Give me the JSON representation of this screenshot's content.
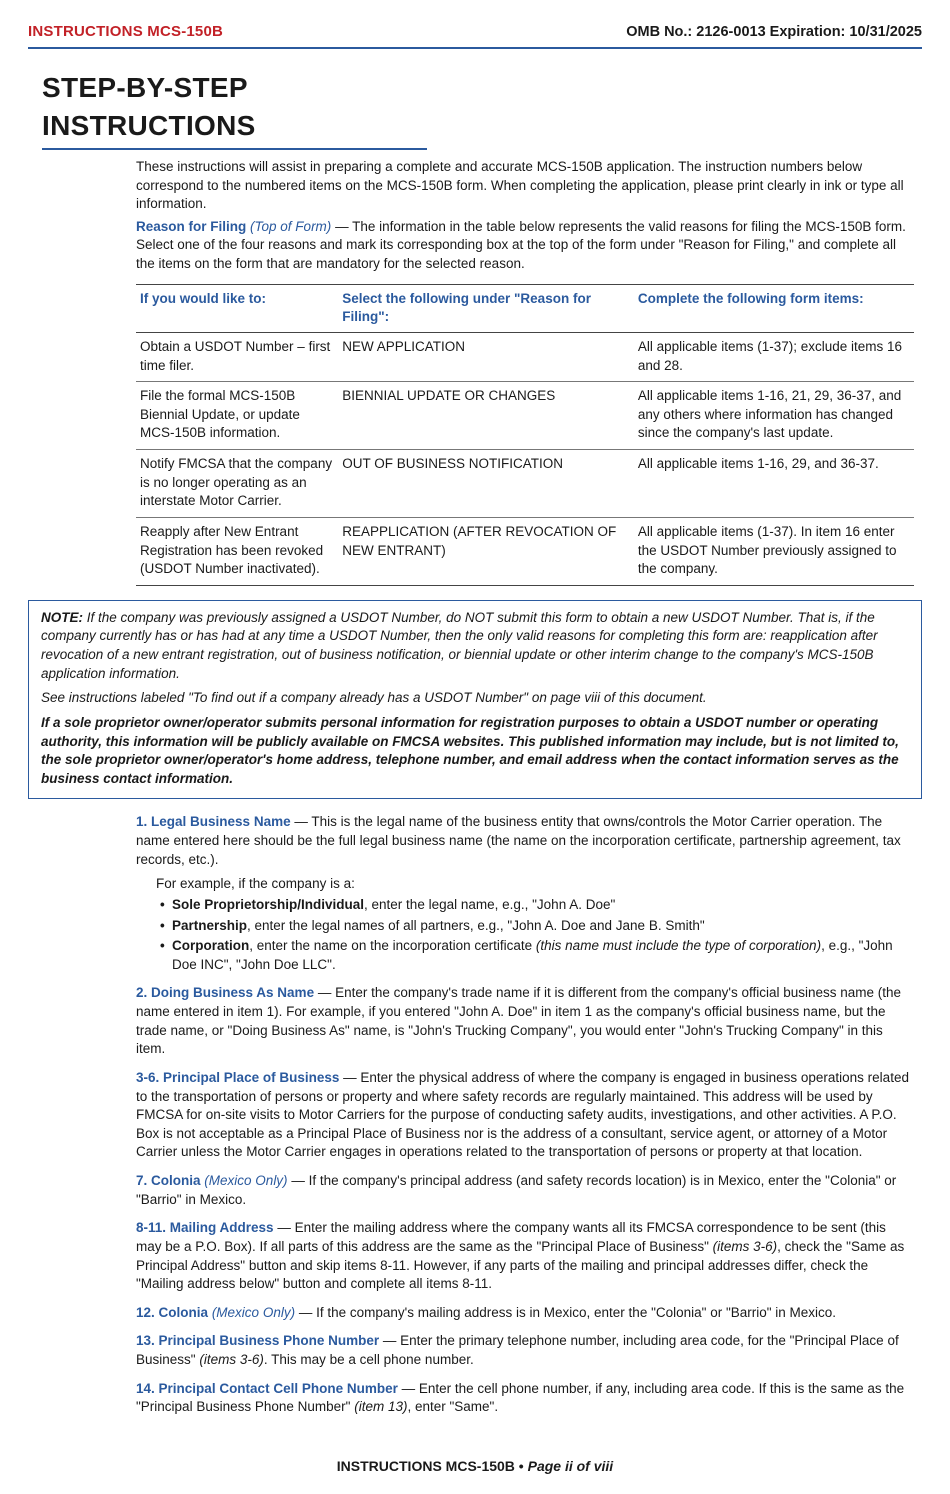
{
  "header": {
    "left": "INSTRUCTIONS MCS-150B",
    "right": "OMB No.: 2126-0013   Expiration: 10/31/2025"
  },
  "title": "STEP-BY-STEP INSTRUCTIONS",
  "intro": {
    "p1": "These instructions will assist in preparing a complete and accurate MCS-150B application. The instruction numbers below correspond to the numbered items on the MCS-150B form. When completing the application, please print clearly in ink or type all information.",
    "reason_label": "Reason for Filing",
    "reason_italic": "(Top of Form)",
    "dash": " — ",
    "reason_text": "The information in the table below represents the valid reasons for filing the MCS-150B form. Select one of the four reasons and mark its corresponding box at the top of the form under \"Reason for Filing,\" and complete all the items on the form that are mandatory for the selected reason."
  },
  "table": {
    "headers": {
      "c1": "If you would like to:",
      "c2": "Select the following under \"Reason for Filing\":",
      "c3": "Complete the following form items:"
    },
    "rows": [
      {
        "c1": "Obtain a USDOT Number – first time filer.",
        "c2": "NEW APPLICATION",
        "c3": "All applicable items (1-37); exclude items 16 and 28."
      },
      {
        "c1": "File the formal MCS-150B Biennial Update, or update MCS-150B information.",
        "c2": "BIENNIAL UPDATE OR CHANGES",
        "c3": "All applicable items 1-16, 21, 29, 36-37, and any others where information has changed since the company's last update."
      },
      {
        "c1": "Notify FMCSA that the company is no longer operating as an interstate Motor Carrier.",
        "c2": "OUT OF BUSINESS NOTIFICATION",
        "c3": "All applicable items 1-16, 29, and 36-37."
      },
      {
        "c1": "Reapply after New Entrant Registration has been revoked (USDOT Number inactivated).",
        "c2": "REAPPLICATION (AFTER REVOCATION OF NEW ENTRANT)",
        "c3": "All applicable items (1-37). In item 16 enter the USDOT Number previously assigned to the company."
      }
    ]
  },
  "note": {
    "label": "NOTE:",
    "p1": " If the company was previously assigned a USDOT Number, do NOT submit this form to obtain a new USDOT Number. That is, if the company currently has or has had at any time a USDOT Number, then the only valid reasons for completing this form are: reapplication after revocation of a new entrant registration, out of business notification, or biennial update or other interim change to the company's MCS-150B application information.",
    "p2": "See instructions labeled \"To find out if a company already has a USDOT Number\" on page viii of this document.",
    "p3": "If a sole proprietor owner/operator submits personal information for registration purposes to obtain a USDOT number or operating authority, this information will be publicly available on FMCSA websites. This published information may include, but is not limited to, the sole proprietor owner/operator's home address, telephone number, and email address when the contact information serves as the business contact information."
  },
  "items": {
    "i1": {
      "num": "1.",
      "title": "Legal Business Name",
      "dash": " — ",
      "text": "This is the legal name of the business entity that owns/controls the Motor Carrier operation. The name entered here should be the full legal business name (the name on the incorporation certificate, partnership agreement, tax records, etc.).",
      "example_intro": "For example, if the company is a:",
      "b1a": "Sole Proprietorship/Individual",
      "b1b": ", enter the legal name, e.g., \"John A. Doe\"",
      "b2a": "Partnership",
      "b2b": ", enter the legal names of all partners, e.g., \"John A. Doe and Jane B. Smith\"",
      "b3a": "Corporation",
      "b3b": ", enter the name on the incorporation certificate ",
      "b3i": "(this name must include the type of corporation)",
      "b3c": ", e.g., \"John Doe INC\", \"John Doe LLC\"."
    },
    "i2": {
      "num": "2.",
      "title": "Doing Business As Name",
      "dash": " — ",
      "text": "Enter the company's trade name if it is different from the company's official business name (the name entered in item 1). For example, if you entered \"John A. Doe\" in item 1 as the company's official business name, but the trade name, or \"Doing Business As\" name, is \"John's Trucking Company\", you would enter \"John's Trucking Company\" in this item."
    },
    "i3": {
      "num": "3-6.",
      "title": "Principal Place of Business",
      "dash": " — ",
      "text": "Enter the physical address of where the company is engaged in business operations related to the transportation of persons or property and where safety records are regularly maintained. This address will be used by FMCSA for on-site visits to Motor Carriers for the purpose of conducting safety audits, investigations, and other activities. A P.O. Box is not acceptable as a Principal Place of Business nor is the address of a consultant, service agent, or attorney of a Motor Carrier unless the Motor Carrier engages in operations related to the transportation of persons or property at that location."
    },
    "i7": {
      "num": "7.",
      "title": "Colonia",
      "italic": "(Mexico Only)",
      "dash": " — ",
      "text": "If the company's principal address (and safety records location) is in Mexico, enter the \"Colonia\" or \"Barrio\" in Mexico."
    },
    "i8": {
      "num": "8-11.",
      "title": "Mailing Address",
      "dash": " — ",
      "text": "Enter the mailing address where the company wants all its FMCSA correspondence to be sent (this may be a P.O. Box). If all parts of this address are the same as the \"Principal Place of Business\" ",
      "ital": "(items 3-6)",
      "text2": ", check the \"Same as Principal Address\" button and skip items 8-11. However, if any parts of the mailing and principal addresses differ, check the \"Mailing address below\" button and complete all items 8-11."
    },
    "i12": {
      "num": "12.",
      "title": "Colonia",
      "italic": "(Mexico Only)",
      "dash": " — ",
      "text": "If the company's mailing address is in Mexico, enter the \"Colonia\" or \"Barrio\" in Mexico."
    },
    "i13": {
      "num": "13.",
      "title": "Principal Business Phone Number",
      "dash": " — ",
      "text": "Enter the primary telephone number, including area code, for the \"Principal Place of Business\" ",
      "ital": "(items 3-6)",
      "text2": ". This may be a cell phone number."
    },
    "i14": {
      "num": "14.",
      "title": "Principal Contact Cell Phone Number",
      "dash": " — ",
      "text": "Enter the cell phone number, if any, including area code. If this is the same as the \"Principal Business Phone Number\" ",
      "ital": "(item 13)",
      "text2": ", enter \"Same\"."
    }
  },
  "footer": {
    "left": "INSTRUCTIONS MCS-150B",
    "dot": " • ",
    "page": "Page ii of viii"
  },
  "colors": {
    "accent_blue": "#2b5a9e",
    "accent_red": "#c22127",
    "text": "#1a1a1a",
    "border_dark": "#444444",
    "border_light": "#777777",
    "background": "#ffffff"
  }
}
